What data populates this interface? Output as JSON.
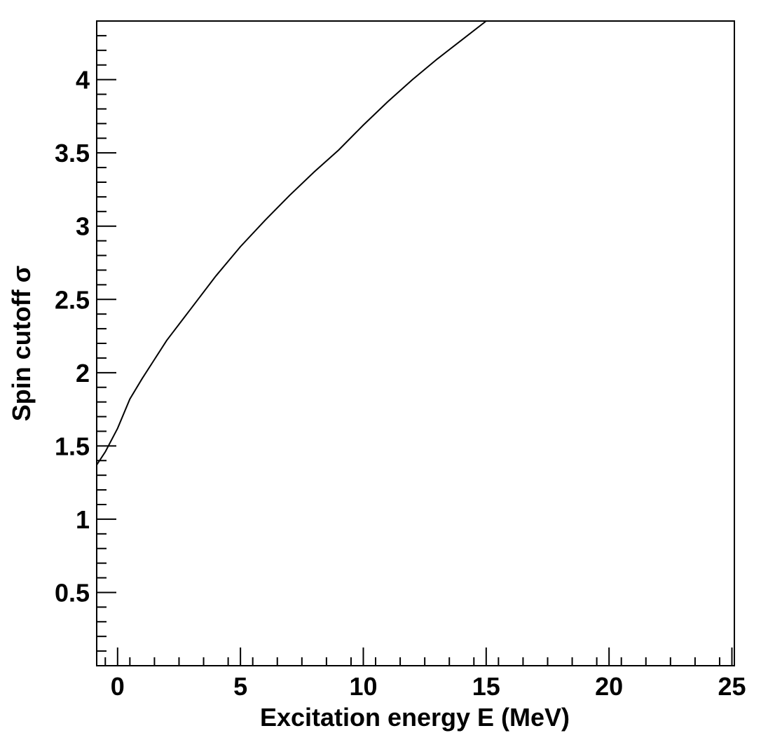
{
  "chart_data": {
    "type": "line",
    "title": "",
    "xlabel": "Excitation energy E (MeV)",
    "ylabel": "Spin cutoff σ",
    "xlim": [
      -0.85,
      25.1
    ],
    "ylim": [
      0.0,
      4.4
    ],
    "xticks": [
      0,
      5,
      10,
      15,
      20,
      25
    ],
    "xtick_labels": [
      "0",
      "5",
      "10",
      "15",
      "20",
      "25"
    ],
    "yticks": [
      0.5,
      1,
      1.5,
      2,
      2.5,
      3,
      3.5,
      4
    ],
    "ytick_labels": [
      "0.5",
      "1",
      "1.5",
      "2",
      "2.5",
      "3",
      "3.5",
      "4"
    ],
    "grid": false,
    "line_color": "#000000",
    "series": [
      {
        "x": [
          -0.85,
          -0.5,
          0,
          0.5,
          1,
          1.5,
          2,
          3,
          4,
          5,
          6,
          7,
          8,
          9,
          10,
          11,
          12,
          13,
          14,
          15
        ],
        "y": [
          1.37,
          1.46,
          1.62,
          1.82,
          1.96,
          2.09,
          2.22,
          2.44,
          2.66,
          2.86,
          3.04,
          3.21,
          3.37,
          3.52,
          3.69,
          3.85,
          4.0,
          4.14,
          4.27,
          4.4
        ]
      }
    ]
  }
}
